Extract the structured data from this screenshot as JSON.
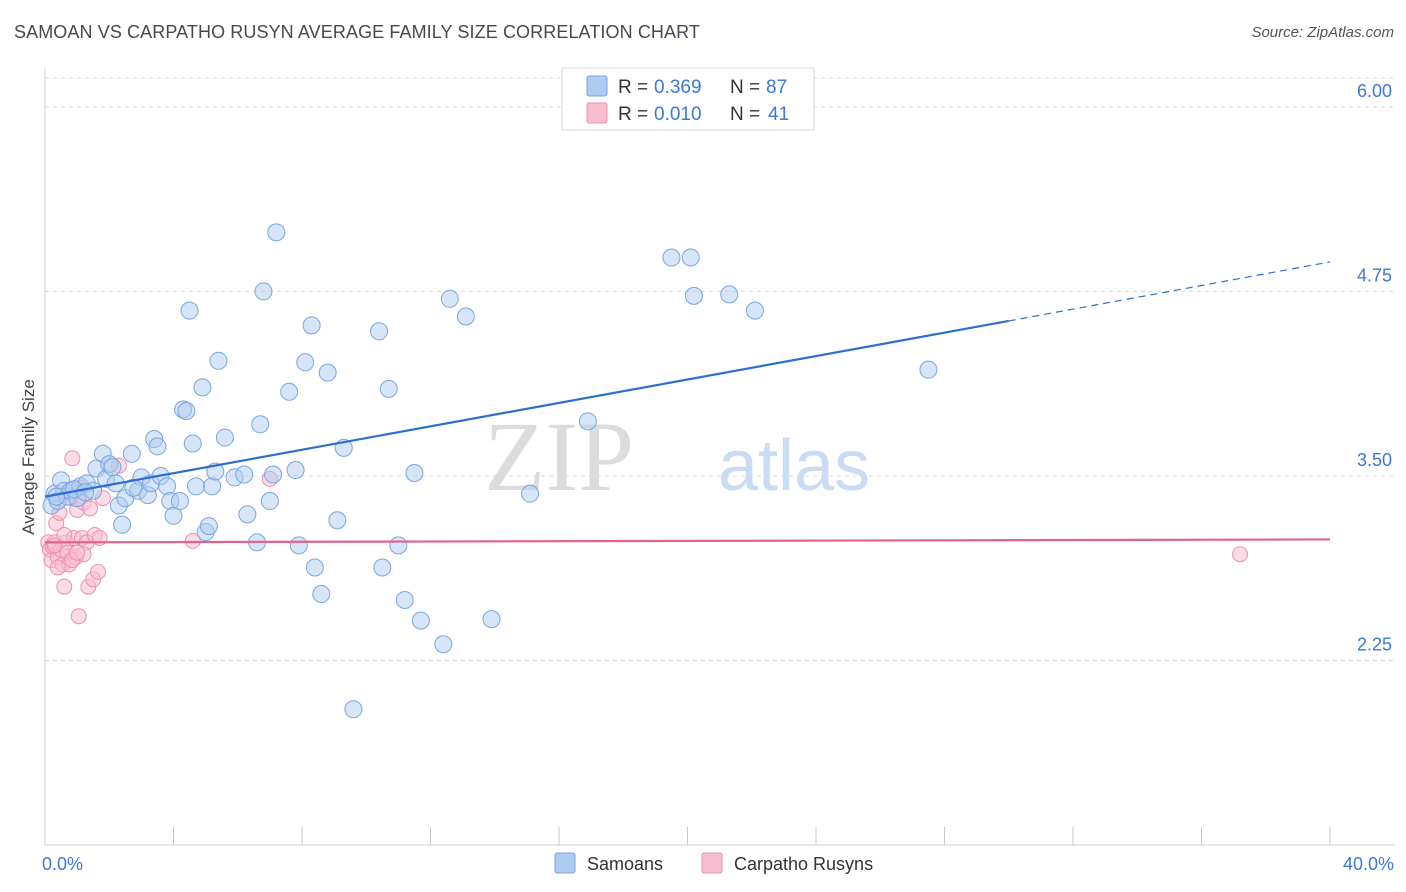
{
  "title": "SAMOAN VS CARPATHO RUSYN AVERAGE FAMILY SIZE CORRELATION CHART",
  "source": "Source: ZipAtlas.com",
  "watermark": {
    "zip": "ZIP",
    "atlas": "atlas"
  },
  "colors": {
    "blue": "#2d6fd0",
    "blue_fill": "#aecbf0",
    "blue_stroke": "#7aa6e0",
    "pink": "#e0638e",
    "pink_fill": "#f7bdd0",
    "pink_stroke": "#ee8fb0",
    "axis_label": "#3b78d8",
    "grid": "#d8d8d8"
  },
  "chart_data": {
    "type": "scatter",
    "xlabel": "",
    "ylabel": "Average Family Size",
    "xlim": [
      0,
      40
    ],
    "ylim": [
      1.0,
      6.25
    ],
    "x_tick_labels": [
      {
        "value": 0,
        "label": "0.0%"
      },
      {
        "value": 40,
        "label": "40.0%"
      }
    ],
    "y_ticks": [
      {
        "value": 2.25,
        "label": "2.25"
      },
      {
        "value": 3.5,
        "label": "3.50"
      },
      {
        "value": 4.75,
        "label": "4.75"
      },
      {
        "value": 6.0,
        "label": "6.00"
      }
    ],
    "legend_position": "top-center",
    "legend": [
      {
        "name": "Samoans",
        "r_label": "R =",
        "r_value": "0.369",
        "n_label": "N =",
        "n_value": "87"
      },
      {
        "name": "Carpatho Rusyns",
        "r_label": "R =",
        "r_value": "0.010",
        "n_label": "N =",
        "n_value": "41"
      }
    ],
    "series": [
      {
        "name": "Samoans",
        "trendline": {
          "x_start": 0,
          "y_start": 3.36,
          "x_end_solid": 30,
          "y_end_solid": 4.55,
          "x_end": 40,
          "y_end": 4.95
        },
        "points": [
          [
            0.2,
            3.3
          ],
          [
            0.3,
            3.38
          ],
          [
            0.4,
            3.33
          ],
          [
            0.5,
            3.47
          ],
          [
            0.6,
            3.4
          ],
          [
            0.7,
            3.36
          ],
          [
            0.8,
            3.4
          ],
          [
            1.0,
            3.35
          ],
          [
            1.1,
            3.43
          ],
          [
            1.3,
            3.45
          ],
          [
            1.5,
            3.4
          ],
          [
            1.6,
            3.55
          ],
          [
            1.8,
            3.65
          ],
          [
            1.9,
            3.48
          ],
          [
            2.0,
            3.58
          ],
          [
            2.2,
            3.45
          ],
          [
            2.3,
            3.3
          ],
          [
            2.4,
            3.17
          ],
          [
            2.5,
            3.35
          ],
          [
            2.7,
            3.65
          ],
          [
            2.9,
            3.4
          ],
          [
            3.0,
            3.49
          ],
          [
            3.2,
            3.37
          ],
          [
            3.3,
            3.45
          ],
          [
            3.4,
            3.75
          ],
          [
            3.5,
            3.7
          ],
          [
            3.6,
            3.5
          ],
          [
            3.8,
            3.43
          ],
          [
            3.9,
            3.33
          ],
          [
            4.0,
            3.23
          ],
          [
            4.2,
            3.33
          ],
          [
            4.3,
            3.95
          ],
          [
            4.4,
            3.94
          ],
          [
            4.5,
            4.62
          ],
          [
            4.6,
            3.72
          ],
          [
            4.7,
            3.43
          ],
          [
            4.9,
            4.1
          ],
          [
            5.0,
            3.12
          ],
          [
            5.1,
            3.16
          ],
          [
            5.2,
            3.43
          ],
          [
            5.3,
            3.53
          ],
          [
            5.4,
            4.28
          ],
          [
            5.6,
            3.76
          ],
          [
            5.9,
            3.49
          ],
          [
            6.2,
            3.51
          ],
          [
            6.3,
            3.24
          ],
          [
            6.6,
            3.05
          ],
          [
            6.7,
            3.85
          ],
          [
            6.8,
            4.75
          ],
          [
            7.0,
            3.33
          ],
          [
            7.1,
            3.51
          ],
          [
            7.2,
            5.15
          ],
          [
            7.6,
            4.07
          ],
          [
            7.8,
            3.54
          ],
          [
            7.9,
            3.03
          ],
          [
            8.1,
            4.27
          ],
          [
            8.3,
            4.52
          ],
          [
            8.4,
            2.88
          ],
          [
            8.6,
            2.7
          ],
          [
            8.8,
            4.2
          ],
          [
            9.1,
            3.2
          ],
          [
            9.3,
            3.69
          ],
          [
            10.4,
            4.48
          ],
          [
            10.5,
            2.88
          ],
          [
            10.7,
            4.09
          ],
          [
            11.0,
            3.03
          ],
          [
            11.2,
            2.66
          ],
          [
            11.5,
            3.52
          ],
          [
            11.7,
            2.52
          ],
          [
            12.4,
            2.36
          ],
          [
            12.6,
            4.7
          ],
          [
            13.1,
            4.58
          ],
          [
            13.9,
            2.53
          ],
          [
            15.1,
            3.38
          ],
          [
            16.9,
            3.87
          ],
          [
            19.5,
            4.98
          ],
          [
            20.1,
            4.98
          ],
          [
            20.2,
            4.72
          ],
          [
            21.3,
            4.73
          ],
          [
            22.1,
            4.62
          ],
          [
            27.5,
            4.22
          ],
          [
            9.6,
            1.92
          ],
          [
            0.35,
            3.36
          ],
          [
            0.9,
            3.41
          ],
          [
            1.25,
            3.39
          ],
          [
            2.1,
            3.56
          ],
          [
            2.75,
            3.42
          ]
        ]
      },
      {
        "name": "Carpatho Rusyns",
        "trendline": {
          "x_start": 0,
          "y_start": 3.05,
          "x_end": 40,
          "y_end": 3.07
        },
        "points": [
          [
            0.1,
            3.05
          ],
          [
            0.15,
            3.0
          ],
          [
            0.2,
            2.93
          ],
          [
            0.25,
            3.02
          ],
          [
            0.3,
            3.05
          ],
          [
            0.35,
            3.18
          ],
          [
            0.4,
            2.95
          ],
          [
            0.45,
            3.25
          ],
          [
            0.5,
            3.0
          ],
          [
            0.55,
            2.9
          ],
          [
            0.6,
            2.75
          ],
          [
            0.65,
            3.05
          ],
          [
            0.7,
            2.98
          ],
          [
            0.75,
            2.9
          ],
          [
            0.8,
            3.35
          ],
          [
            0.85,
            3.62
          ],
          [
            0.9,
            3.08
          ],
          [
            0.95,
            2.95
          ],
          [
            1.0,
            3.27
          ],
          [
            1.05,
            2.55
          ],
          [
            1.1,
            3.42
          ],
          [
            1.15,
            3.08
          ],
          [
            1.2,
            3.32
          ],
          [
            1.3,
            3.05
          ],
          [
            1.35,
            2.75
          ],
          [
            1.4,
            3.28
          ],
          [
            1.5,
            2.8
          ],
          [
            1.55,
            3.1
          ],
          [
            1.65,
            2.85
          ],
          [
            1.7,
            3.08
          ],
          [
            1.8,
            3.35
          ],
          [
            2.3,
            3.57
          ],
          [
            4.6,
            3.06
          ],
          [
            7.0,
            3.48
          ],
          [
            37.2,
            2.97
          ],
          [
            0.4,
            2.88
          ],
          [
            0.6,
            3.1
          ],
          [
            0.85,
            2.93
          ],
          [
            1.2,
            2.97
          ],
          [
            0.3,
            3.03
          ],
          [
            1.0,
            2.98
          ]
        ]
      }
    ]
  }
}
